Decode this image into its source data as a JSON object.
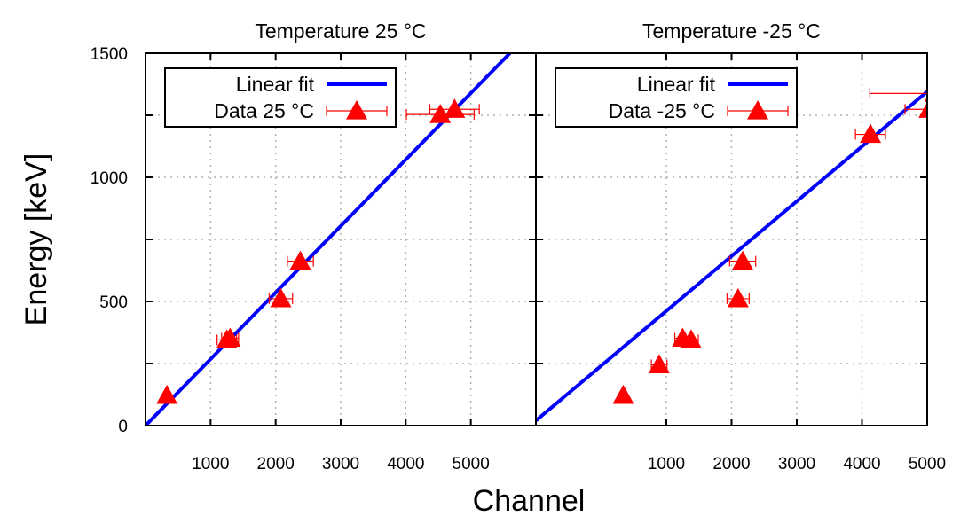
{
  "figure": {
    "xlabel": "Channel",
    "ylabel": "Energy [keV]"
  },
  "chart_data": [
    {
      "type": "scatter",
      "title": "Temperature 25 °C",
      "xlim": [
        0,
        6000
      ],
      "ylim": [
        0,
        1500
      ],
      "xticks": [
        1000,
        2000,
        3000,
        4000,
        5000
      ],
      "yticks": [
        0,
        500,
        1000,
        1500
      ],
      "grid": true,
      "legend_position": "top-left",
      "series": [
        {
          "name": "Linear fit",
          "type": "line",
          "color": "#0000ff",
          "x": [
            0,
            5600
          ],
          "y": [
            0,
            1500
          ]
        },
        {
          "name": "Data 25 °C",
          "type": "scatter",
          "marker": "triangle",
          "color": "#ff0000",
          "points": [
            {
              "x": 330,
              "y": 122,
              "xerr": 30
            },
            {
              "x": 1250,
              "y": 345,
              "xerr": 150
            },
            {
              "x": 1300,
              "y": 352,
              "xerr": 130
            },
            {
              "x": 2080,
              "y": 511,
              "xerr": 180
            },
            {
              "x": 2380,
              "y": 662,
              "xerr": 200
            },
            {
              "x": 4530,
              "y": 1253,
              "xerr": 520
            },
            {
              "x": 4750,
              "y": 1274,
              "xerr": 380
            }
          ]
        }
      ]
    },
    {
      "type": "scatter",
      "title": "Temperature -25 °C",
      "xlim": [
        -1000,
        5000
      ],
      "ylim": [
        0,
        1500
      ],
      "xticks": [
        1000,
        2000,
        3000,
        4000,
        5000
      ],
      "yticks": [
        0,
        500,
        1000,
        1500
      ],
      "grid": true,
      "legend_position": "top-left",
      "series": [
        {
          "name": "Linear fit",
          "type": "line",
          "color": "#0000ff",
          "x": [
            -1000,
            5700
          ],
          "y": [
            20,
            1500
          ]
        },
        {
          "name": "Data -25 °C",
          "type": "scatter",
          "marker": "triangle",
          "color": "#ff0000",
          "points": [
            {
              "x": 340,
              "y": 122,
              "xerr": 30
            },
            {
              "x": 890,
              "y": 245,
              "xerr": 120
            },
            {
              "x": 1250,
              "y": 352,
              "xerr": 120
            },
            {
              "x": 1380,
              "y": 345,
              "xerr": 110
            },
            {
              "x": 2100,
              "y": 511,
              "xerr": 170
            },
            {
              "x": 2170,
              "y": 662,
              "xerr": 200
            },
            {
              "x": 4130,
              "y": 1173,
              "xerr": 230
            },
            {
              "x": 5030,
              "y": 1274,
              "xerr": 370
            },
            {
              "x": 5120,
              "y": 1338,
              "xerr": 1000
            }
          ]
        }
      ]
    }
  ]
}
